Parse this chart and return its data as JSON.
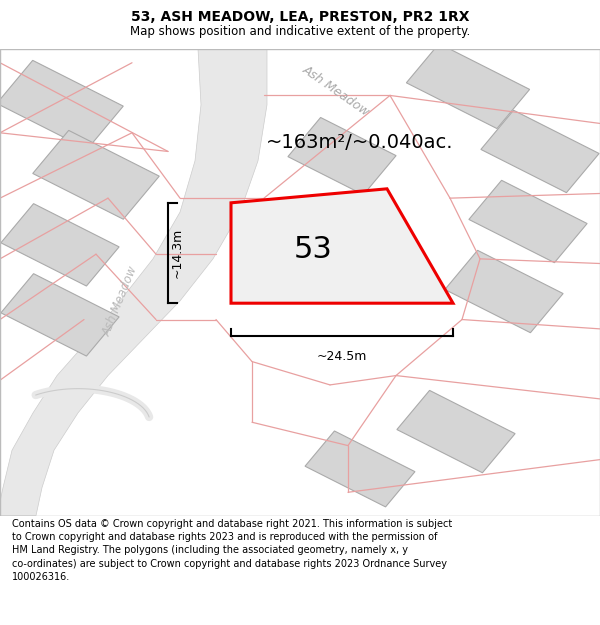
{
  "title": "53, ASH MEADOW, LEA, PRESTON, PR2 1RX",
  "subtitle": "Map shows position and indicative extent of the property.",
  "footer": "Contains OS data © Crown copyright and database right 2021. This information is subject\nto Crown copyright and database rights 2023 and is reproduced with the permission of\nHM Land Registry. The polygons (including the associated geometry, namely x, y\nco-ordinates) are subject to Crown copyright and database rights 2023 Ordnance Survey\n100026316.",
  "area_text": "~163m²/~0.040ac.",
  "width_label": "~24.5m",
  "height_label": "~14.3m",
  "map_bg": "#ebebeb",
  "plot_fill": "#f0f0f0",
  "plot_outline": "#ee0000",
  "building_fill": "#d5d5d5",
  "building_outline": "#aaaaaa",
  "road_fill": "#e8e8e8",
  "road_outline": "#cccccc",
  "pink_line": "#e8a0a0",
  "title_fontsize": 10,
  "subtitle_fontsize": 8.5,
  "footer_fontsize": 7,
  "area_fontsize": 14,
  "label_53_fontsize": 22,
  "dim_fontsize": 9,
  "street_fontsize": 9
}
